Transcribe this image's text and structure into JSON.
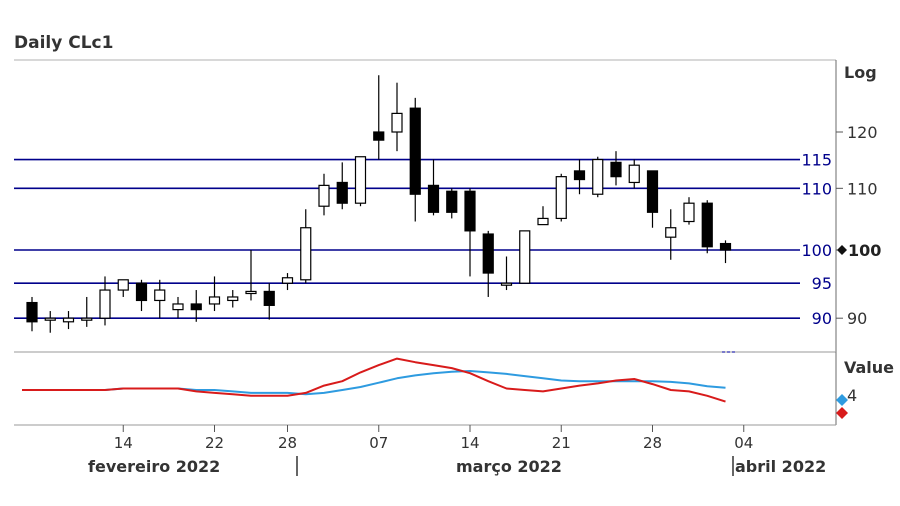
{
  "chart_data": [
    {
      "type": "candlestick",
      "title": "Daily CLc1",
      "y_axis_label": "Log",
      "y_scale": "log",
      "ylim": [
        86,
        138
      ],
      "y_ticks": [
        "90",
        "100",
        "110",
        "120"
      ],
      "levels": [
        {
          "value": 115,
          "label": "115"
        },
        {
          "value": 110,
          "label": "110"
        },
        {
          "value": 100,
          "label": "100"
        },
        {
          "value": 95,
          "label": "95"
        },
        {
          "value": 90,
          "label": "90"
        }
      ],
      "last_price": {
        "value": 100,
        "label": "100"
      },
      "colors": {
        "level_line": "#00008b",
        "up_body": "#ffffff",
        "down_body": "#000000",
        "wick": "#000000"
      },
      "candles": [
        {
          "date": "2022-02-07",
          "open": 92.2,
          "high": 93.0,
          "low": 88.2,
          "close": 89.5
        },
        {
          "date": "2022-02-08",
          "open": 90.0,
          "high": 91.0,
          "low": 88.0,
          "close": 90.0
        },
        {
          "date": "2022-02-09",
          "open": 89.5,
          "high": 91.0,
          "low": 88.5,
          "close": 90.0
        },
        {
          "date": "2022-02-10",
          "open": 89.8,
          "high": 93.0,
          "low": 88.8,
          "close": 90.0
        },
        {
          "date": "2022-02-11",
          "open": 90.0,
          "high": 96.0,
          "low": 89.0,
          "close": 94.0
        },
        {
          "date": "2022-02-14",
          "open": 94.0,
          "high": 95.5,
          "low": 93.0,
          "close": 95.5
        },
        {
          "date": "2022-02-15",
          "open": 95.0,
          "high": 95.5,
          "low": 91.0,
          "close": 92.5
        },
        {
          "date": "2022-02-16",
          "open": 92.5,
          "high": 95.5,
          "low": 90.0,
          "close": 94.0
        },
        {
          "date": "2022-02-17",
          "open": 91.2,
          "high": 93.0,
          "low": 90.0,
          "close": 92.0
        },
        {
          "date": "2022-02-18",
          "open": 92.0,
          "high": 94.0,
          "low": 89.5,
          "close": 91.2
        },
        {
          "date": "2022-02-22",
          "open": 92.0,
          "high": 96.0,
          "low": 91.0,
          "close": 93.0
        },
        {
          "date": "2022-02-23",
          "open": 92.5,
          "high": 94.0,
          "low": 91.5,
          "close": 93.0
        },
        {
          "date": "2022-02-24",
          "open": 93.5,
          "high": 100.0,
          "low": 92.5,
          "close": 93.8
        },
        {
          "date": "2022-02-25",
          "open": 93.8,
          "high": 95.0,
          "low": 89.8,
          "close": 91.8
        },
        {
          "date": "2022-02-28",
          "open": 95.0,
          "high": 96.5,
          "low": 94.0,
          "close": 95.8
        },
        {
          "date": "2022-03-01",
          "open": 95.5,
          "high": 106.5,
          "low": 95.0,
          "close": 103.5
        },
        {
          "date": "2022-03-02",
          "open": 107.0,
          "high": 112.5,
          "low": 105.5,
          "close": 110.5
        },
        {
          "date": "2022-03-03",
          "open": 111.0,
          "high": 114.5,
          "low": 106.5,
          "close": 107.5
        },
        {
          "date": "2022-03-04",
          "open": 107.5,
          "high": 115.5,
          "low": 107.0,
          "close": 115.5
        },
        {
          "date": "2022-03-07",
          "open": 120.0,
          "high": 131.0,
          "low": 115.0,
          "close": 118.5
        },
        {
          "date": "2022-03-08",
          "open": 120.0,
          "high": 129.5,
          "low": 116.5,
          "close": 123.5
        },
        {
          "date": "2022-03-09",
          "open": 124.5,
          "high": 126.5,
          "low": 104.5,
          "close": 109.0
        },
        {
          "date": "2022-03-10",
          "open": 110.5,
          "high": 115.0,
          "low": 105.5,
          "close": 106.0
        },
        {
          "date": "2022-03-11",
          "open": 109.5,
          "high": 110.0,
          "low": 105.0,
          "close": 106.0
        },
        {
          "date": "2022-03-14",
          "open": 109.5,
          "high": 110.0,
          "low": 96.0,
          "close": 103.0
        },
        {
          "date": "2022-03-15",
          "open": 102.5,
          "high": 103.0,
          "low": 93.0,
          "close": 96.5
        },
        {
          "date": "2022-03-16",
          "open": 95.0,
          "high": 99.0,
          "low": 94.0,
          "close": 95.0
        },
        {
          "date": "2022-03-17",
          "open": 95.0,
          "high": 103.0,
          "low": 95.0,
          "close": 103.0
        },
        {
          "date": "2022-03-18",
          "open": 104.0,
          "high": 107.0,
          "low": 104.0,
          "close": 105.0
        },
        {
          "date": "2022-03-21",
          "open": 105.0,
          "high": 112.5,
          "low": 104.5,
          "close": 112.0
        },
        {
          "date": "2022-03-22",
          "open": 113.0,
          "high": 115.0,
          "low": 109.0,
          "close": 111.5
        },
        {
          "date": "2022-03-23",
          "open": 109.0,
          "high": 115.5,
          "low": 108.5,
          "close": 115.0
        },
        {
          "date": "2022-03-24",
          "open": 114.5,
          "high": 116.5,
          "low": 110.5,
          "close": 112.0
        },
        {
          "date": "2022-03-25",
          "open": 111.0,
          "high": 115.0,
          "low": 110.0,
          "close": 114.0
        },
        {
          "date": "2022-03-28",
          "open": 113.0,
          "high": 113.0,
          "low": 103.5,
          "close": 106.0
        },
        {
          "date": "2022-03-29",
          "open": 102.0,
          "high": 106.5,
          "low": 98.5,
          "close": 103.5
        },
        {
          "date": "2022-03-30",
          "open": 104.5,
          "high": 108.5,
          "low": 104.0,
          "close": 107.5
        },
        {
          "date": "2022-03-31",
          "open": 107.5,
          "high": 108.0,
          "low": 99.5,
          "close": 100.5
        },
        {
          "date": "2022-04-01",
          "open": 101.0,
          "high": 101.5,
          "low": 98.0,
          "close": 100.0
        }
      ]
    },
    {
      "type": "line",
      "y_axis_label": "Value",
      "y_ticks": [
        "4"
      ],
      "ylim": [
        1,
        6
      ],
      "colors": {
        "blue": "#2e9be0",
        "red": "#d81b1b"
      },
      "series": [
        {
          "color": "#2e9be0",
          "values": [
            3.4,
            3.4,
            3.4,
            3.4,
            3.4,
            3.5,
            3.5,
            3.5,
            3.5,
            3.4,
            3.4,
            3.3,
            3.2,
            3.2,
            3.2,
            3.1,
            3.2,
            3.4,
            3.6,
            3.9,
            4.2,
            4.4,
            4.55,
            4.65,
            4.7,
            4.6,
            4.5,
            4.35,
            4.2,
            4.05,
            4.0,
            4.0,
            4.0,
            4.0,
            4.0,
            3.95,
            3.85,
            3.65,
            3.55
          ]
        },
        {
          "color": "#d81b1b",
          "values": [
            3.4,
            3.4,
            3.4,
            3.4,
            3.4,
            3.5,
            3.5,
            3.5,
            3.5,
            3.3,
            3.2,
            3.1,
            3.0,
            3.0,
            3.0,
            3.2,
            3.7,
            4.0,
            4.6,
            5.1,
            5.55,
            5.3,
            5.1,
            4.9,
            4.55,
            4.0,
            3.5,
            3.4,
            3.3,
            3.5,
            3.7,
            3.85,
            4.05,
            4.15,
            3.8,
            3.4,
            3.3,
            3.0,
            2.6
          ]
        }
      ],
      "markers": [
        {
          "shape": "diamond",
          "color": "#2e9be0"
        },
        {
          "shape": "diamond",
          "color": "#d81b1b"
        }
      ]
    }
  ],
  "x_axis": {
    "tick_labels": [
      {
        "date": "2022-02-14",
        "label": "14"
      },
      {
        "date": "2022-02-22",
        "label": "22"
      },
      {
        "date": "2022-02-28",
        "label": "28"
      },
      {
        "date": "2022-03-07",
        "label": "07"
      },
      {
        "date": "2022-03-14",
        "label": "14"
      },
      {
        "date": "2022-03-21",
        "label": "21"
      },
      {
        "date": "2022-03-28",
        "label": "28"
      },
      {
        "date": "2022-04-04",
        "label": "04"
      }
    ],
    "month_labels": [
      "fevereiro 2022",
      "março 2022",
      "abril 2022"
    ]
  }
}
